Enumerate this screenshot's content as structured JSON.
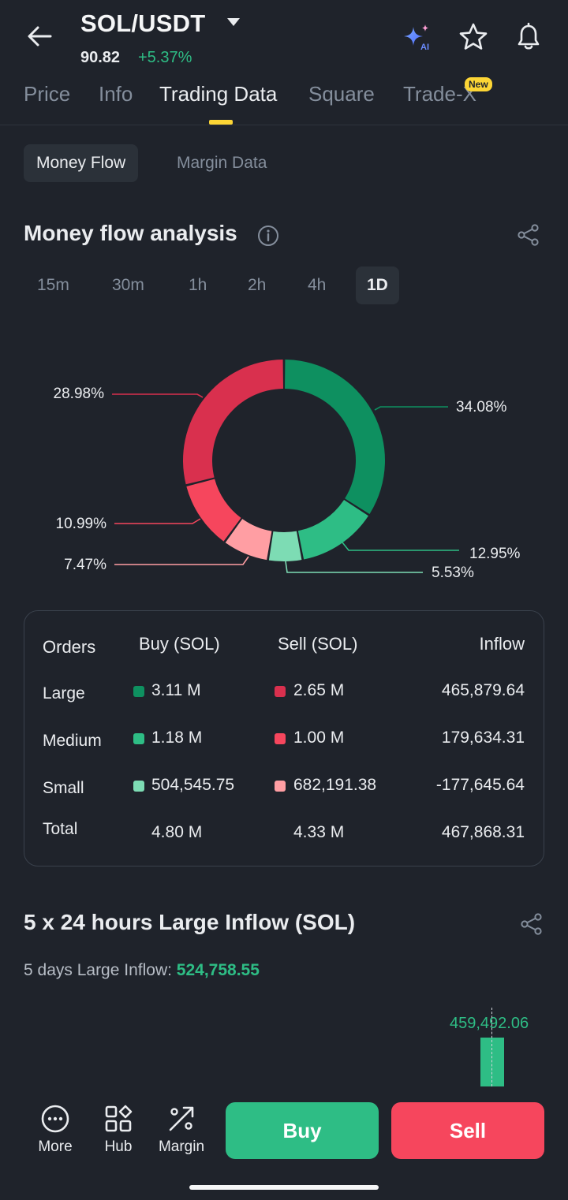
{
  "header": {
    "pair": "SOL/USDT",
    "price": "90.82",
    "change": "+5.37%",
    "icons": [
      "back-arrow-icon",
      "caret-down-icon",
      "ai-sparkle-icon",
      "star-icon",
      "bell-icon"
    ]
  },
  "tabs": [
    {
      "label": "Price"
    },
    {
      "label": "Info"
    },
    {
      "label": "Trading Data"
    },
    {
      "label": "Square"
    },
    {
      "label": "Trade-X"
    }
  ],
  "new_badge": "New",
  "subtabs": [
    {
      "label": "Money Flow"
    },
    {
      "label": "Margin Data"
    }
  ],
  "money_flow": {
    "title": "Money flow analysis",
    "periods": [
      "15m",
      "30m",
      "1h",
      "2h",
      "4h",
      "1D"
    ],
    "active_period": "1D"
  },
  "chart_data": {
    "type": "pie",
    "variant": "donut",
    "slices": [
      {
        "name": "Large Buy",
        "value": 34.08,
        "label": "34.08%",
        "color": "#0e9060"
      },
      {
        "name": "Medium Buy",
        "value": 12.95,
        "label": "12.95%",
        "color": "#2ebd85"
      },
      {
        "name": "Small Buy",
        "value": 5.53,
        "label": "5.53%",
        "color": "#7ddcb4"
      },
      {
        "name": "Small Sell",
        "value": 7.47,
        "label": "7.47%",
        "color": "#ff9ea3"
      },
      {
        "name": "Medium Sell",
        "value": 10.99,
        "label": "10.99%",
        "color": "#f6465d"
      },
      {
        "name": "Large Sell",
        "value": 28.98,
        "label": "28.98%",
        "color": "#d9304e"
      }
    ]
  },
  "table": {
    "headers": {
      "orders": "Orders",
      "buy": "Buy (SOL)",
      "sell": "Sell (SOL)",
      "inflow": "Inflow"
    },
    "rows": [
      {
        "label": "Large",
        "buy": "3.11 M",
        "sell": "2.65 M",
        "inflow": "465,879.64",
        "buy_color": "#0e9060",
        "sell_color": "#d9304e"
      },
      {
        "label": "Medium",
        "buy": "1.18 M",
        "sell": "1.00 M",
        "inflow": "179,634.31",
        "buy_color": "#2ebd85",
        "sell_color": "#f6465d"
      },
      {
        "label": "Small",
        "buy": "504,545.75",
        "sell": "682,191.38",
        "inflow": "-177,645.64",
        "buy_color": "#7ddcb4",
        "sell_color": "#ff9ea3"
      },
      {
        "label": "Total",
        "buy": "4.80 M",
        "sell": "4.33 M",
        "inflow": "467,868.31"
      }
    ]
  },
  "large_inflow": {
    "title": "5 x 24 hours Large Inflow (SOL)",
    "sub_label": "5 days Large Inflow: ",
    "sub_value": "524,758.55",
    "bar_value": "459,492.06"
  },
  "bottom_nav": {
    "items": [
      {
        "label": "More",
        "icon": "more-icon"
      },
      {
        "label": "Hub",
        "icon": "hub-icon"
      },
      {
        "label": "Margin",
        "icon": "margin-icon"
      }
    ],
    "buy": "Buy",
    "sell": "Sell"
  },
  "colors": {
    "background": "#1f232b",
    "up": "#2ebd85",
    "down": "#f6465d",
    "accent": "#fcd535"
  }
}
